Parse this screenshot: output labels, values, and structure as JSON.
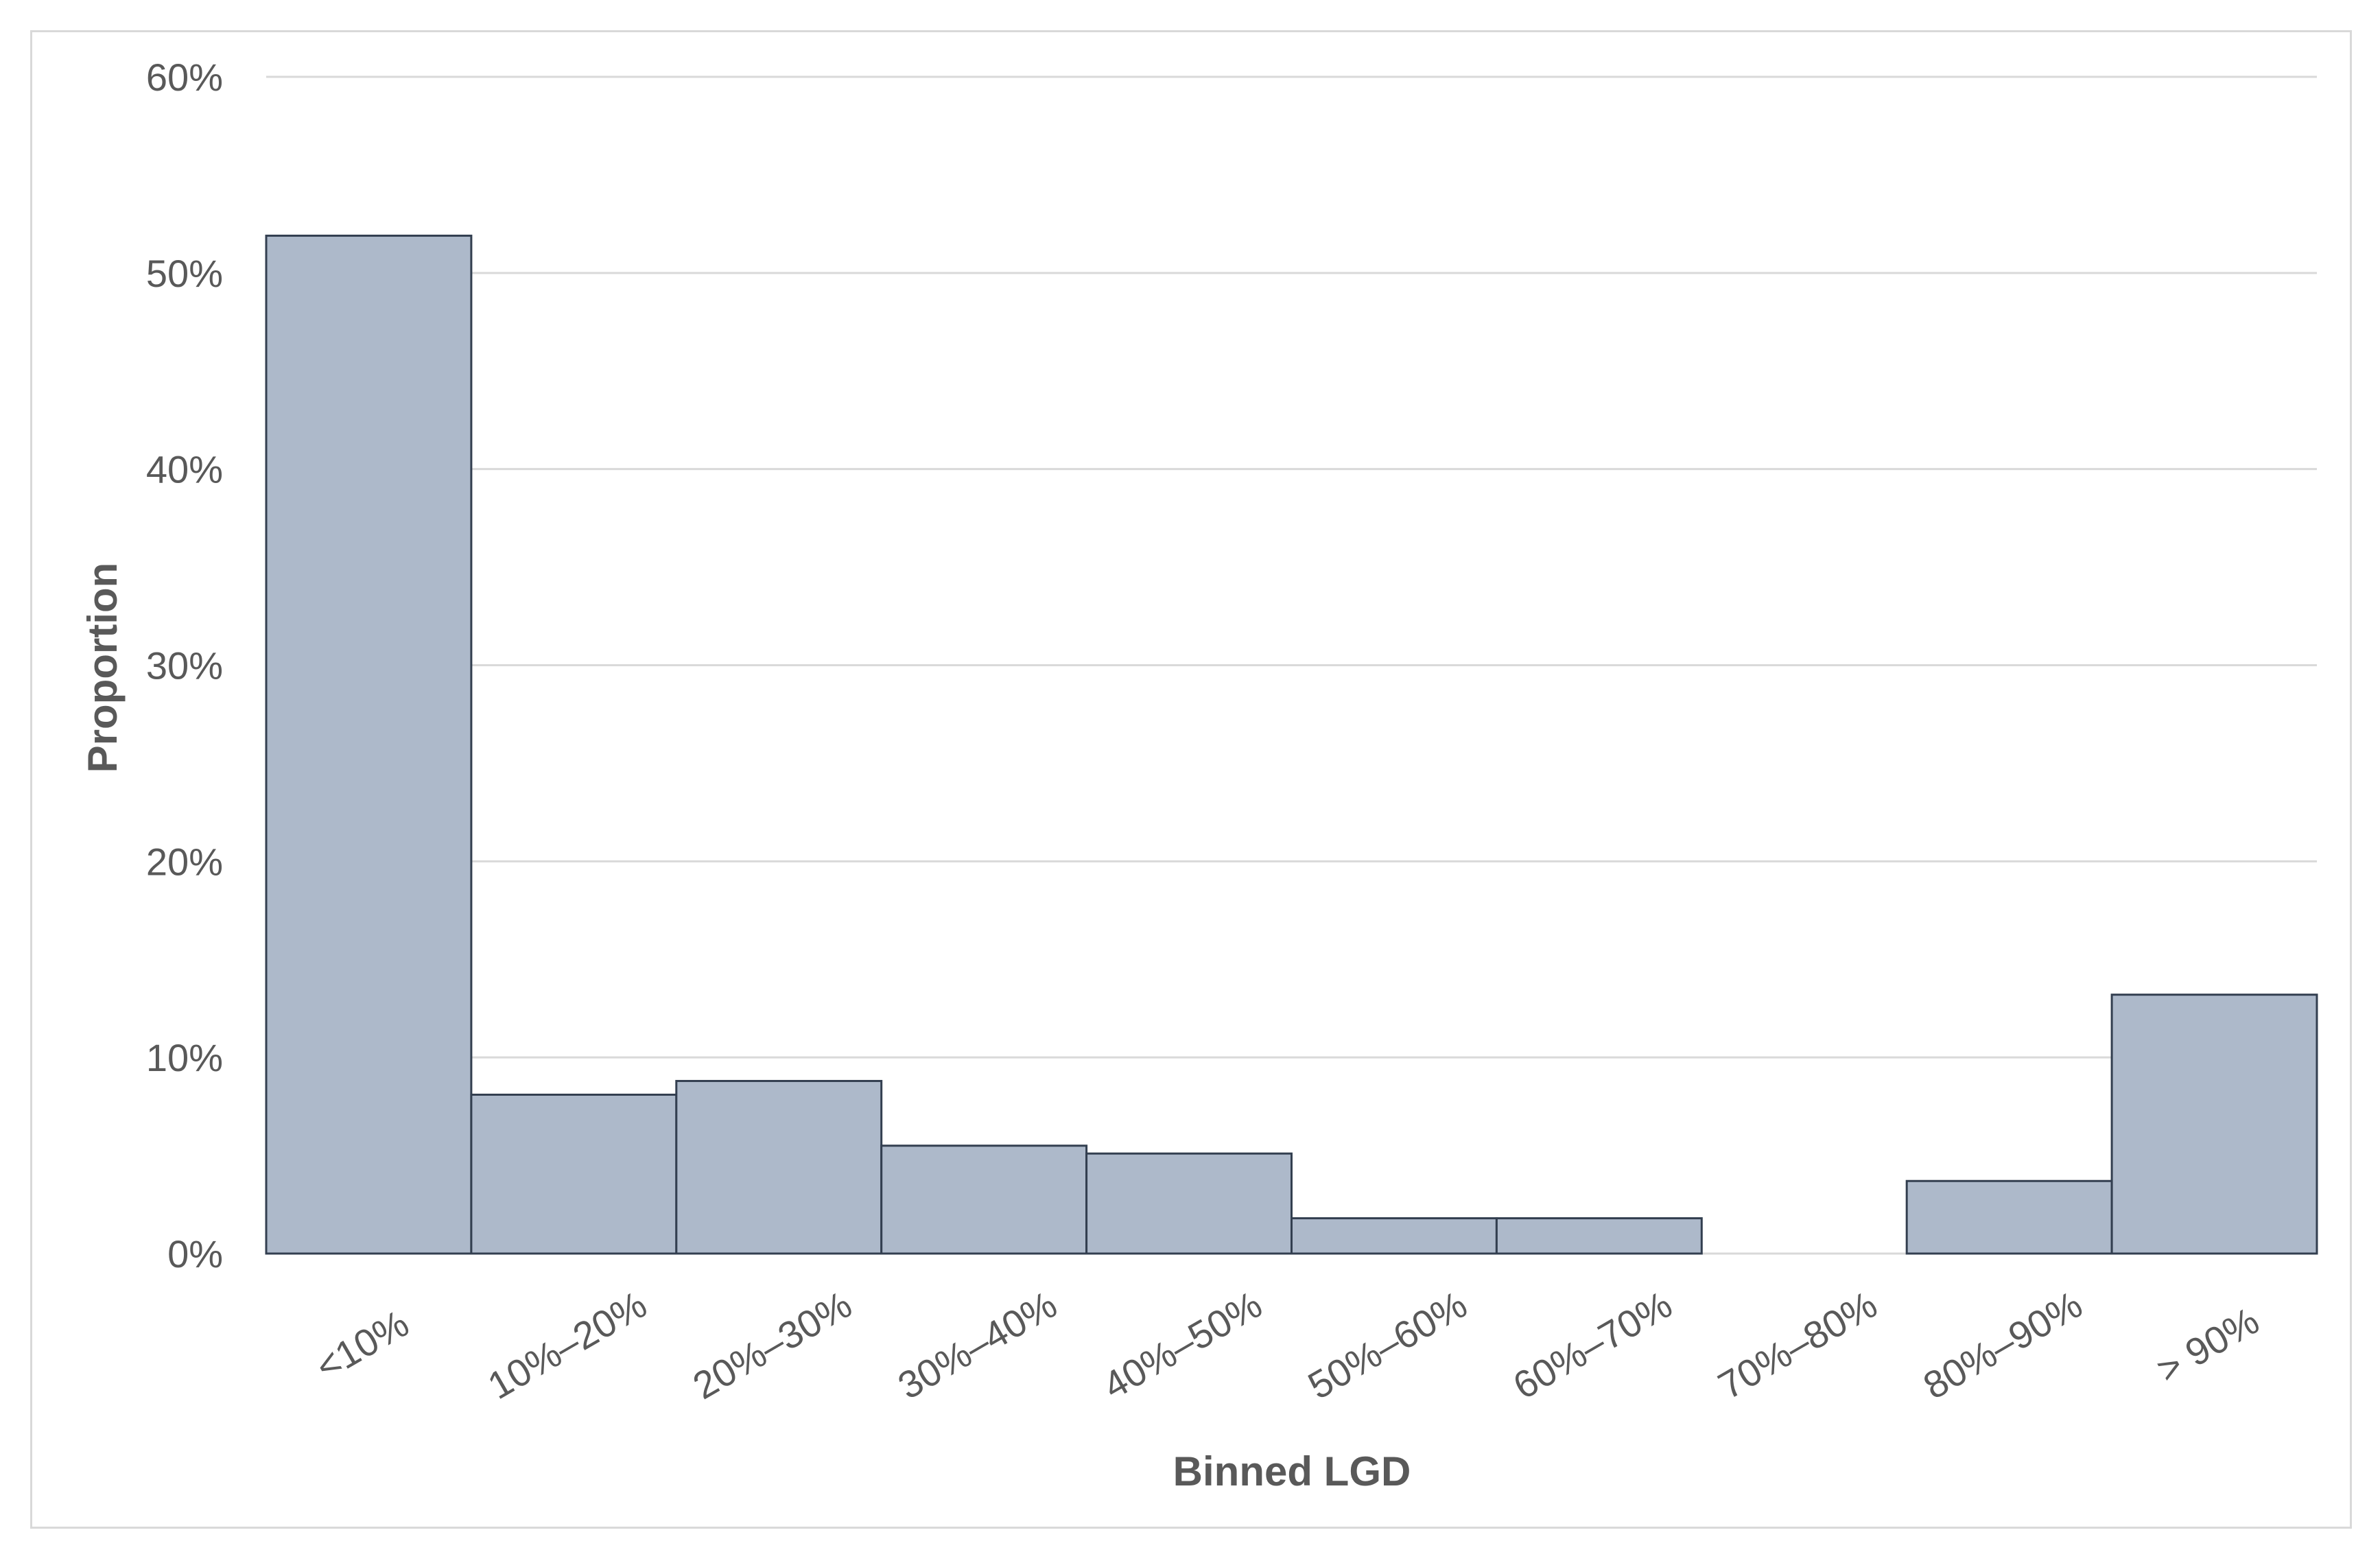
{
  "chart_data": {
    "type": "bar",
    "title": "",
    "xlabel": "Binned LGD",
    "ylabel": "Proportion",
    "categories": [
      "<10%",
      "10%–20%",
      "20%–30%",
      "30%–40%",
      "40%–50%",
      "50%–60%",
      "60%–70%",
      "70%–80%",
      "80%–90%",
      "> 90%"
    ],
    "values": [
      0.519,
      0.081,
      0.088,
      0.055,
      0.051,
      0.018,
      0.018,
      0.0,
      0.037,
      0.132
    ],
    "ylim": [
      0,
      0.6
    ],
    "yticks": [
      0,
      0.1,
      0.2,
      0.3,
      0.4,
      0.5,
      0.6
    ],
    "ytick_labels": [
      "0%",
      "10%",
      "20%",
      "30%",
      "40%",
      "50%",
      "60%"
    ],
    "grid": true,
    "legend": "none",
    "colors": {
      "bar_fill": "#adb9ca",
      "bar_edge": "#333f50",
      "grid": "#d9d9d9",
      "text": "#595959"
    }
  }
}
